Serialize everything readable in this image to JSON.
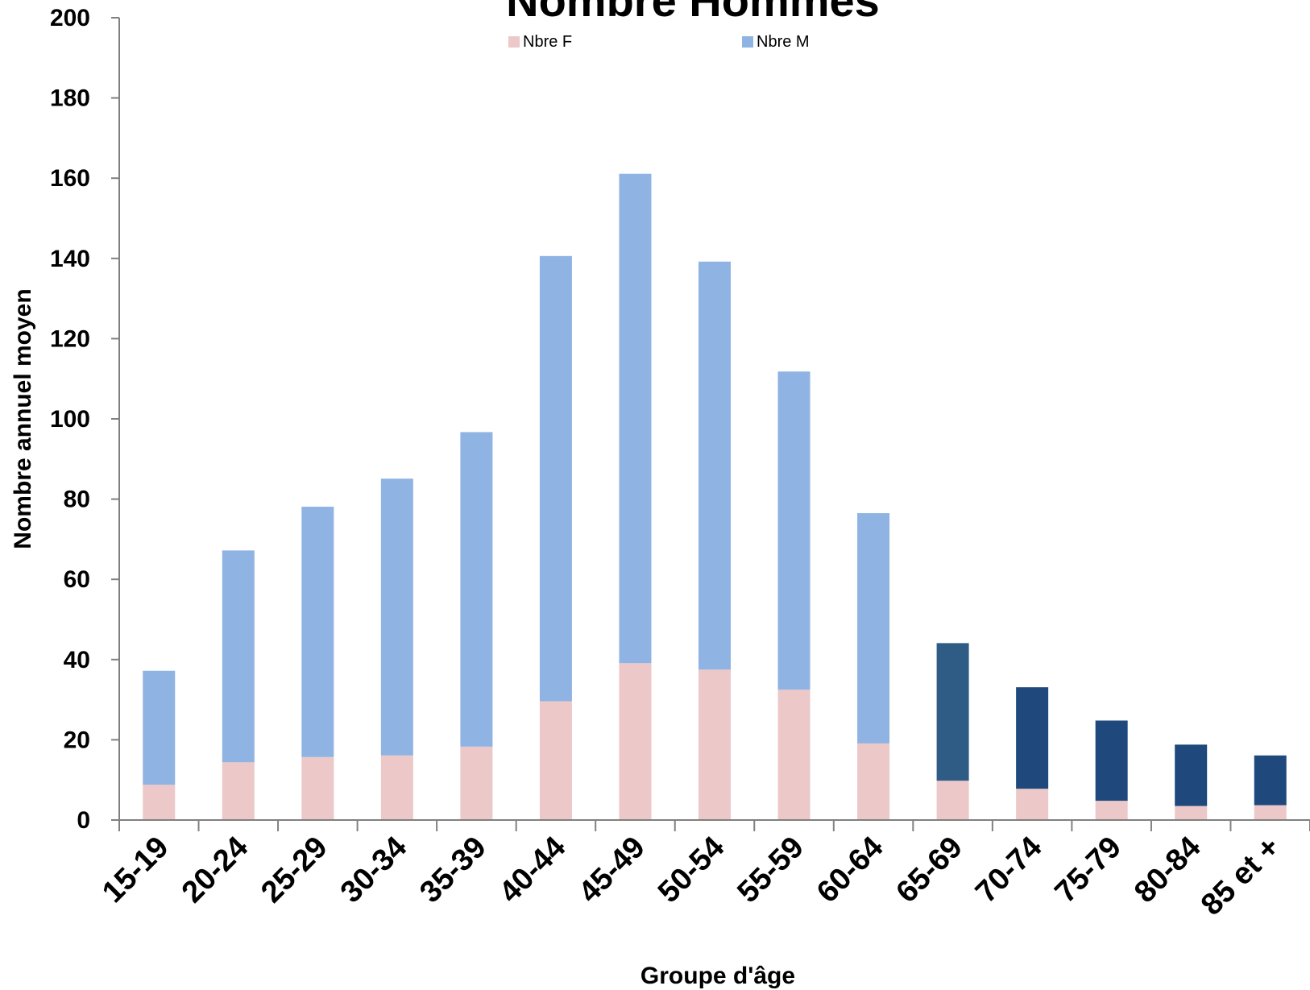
{
  "chart_data": {
    "type": "bar",
    "stacked": true,
    "title": "Nombre Hommes",
    "xlabel": "Groupe d'âge",
    "ylabel": "Nombre annuel moyen",
    "ylim": [
      0,
      200
    ],
    "yticks": [
      0,
      20,
      40,
      60,
      80,
      100,
      120,
      140,
      160,
      180,
      200
    ],
    "grid": false,
    "legend_position": "top-center",
    "categories": [
      "15-19",
      "20-24",
      "25-29",
      "30-34",
      "35-39",
      "40-44",
      "45-49",
      "50-54",
      "55-59",
      "60-64",
      "65-69",
      "70-74",
      "75-79",
      "80-84",
      "85 et +"
    ],
    "series": [
      {
        "name": "Nbre F",
        "color": "#ecc8c8",
        "values": [
          8.8,
          14.4,
          15.7,
          16.1,
          18.3,
          29.6,
          39.1,
          37.5,
          32.5,
          19.1,
          9.8,
          7.8,
          4.8,
          3.5,
          3.7
        ]
      },
      {
        "name": "Nbre M",
        "color": "#8fb3e2",
        "values": [
          28.4,
          52.8,
          62.4,
          69.0,
          78.4,
          111.0,
          122.0,
          101.7,
          79.3,
          57.4,
          34.3,
          25.3,
          20.0,
          15.3,
          12.4
        ],
        "point_colors": [
          "#8fb3e2",
          "#8fb3e2",
          "#8fb3e2",
          "#8fb3e2",
          "#8fb3e2",
          "#8fb3e2",
          "#8fb3e2",
          "#8fb3e2",
          "#8fb3e2",
          "#8fb3e2",
          "#2f5c85",
          "#1f497d",
          "#1f497d",
          "#1f497d",
          "#1f497d"
        ]
      }
    ]
  }
}
